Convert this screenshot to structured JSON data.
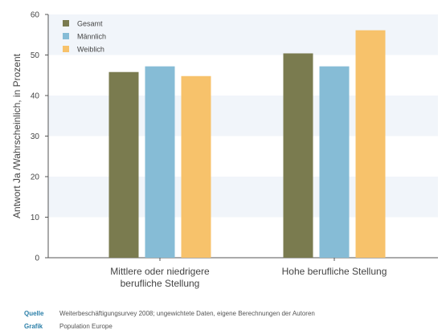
{
  "chart_data": {
    "type": "bar",
    "ylabel": "Antwort Ja /Wahrscheinlich, in Prozent",
    "ylim": [
      0,
      60
    ],
    "yticks": [
      0,
      10,
      20,
      30,
      40,
      50,
      60
    ],
    "categories": [
      "Mittlere oder niedrigere berufliche Stellung",
      "Hohe berufliche Stellung"
    ],
    "series": [
      {
        "name": "Gesamt",
        "color": "#7a7b4f",
        "values": [
          45.8,
          50.4
        ]
      },
      {
        "name": "Männlich",
        "color": "#86bcd6",
        "values": [
          47.2,
          47.2
        ]
      },
      {
        "name": "Weiblich",
        "color": "#f7c26b",
        "values": [
          44.8,
          56.1
        ]
      }
    ],
    "legend_position": "top-left",
    "grid": "alternating horizontal bands"
  },
  "footer": {
    "source_label": "Quelle",
    "source_text": "Weiterbeschäftigungsurvey 2008; ungewichtete Daten, eigene Berechnungen der Autoren",
    "graphic_label": "Grafik",
    "graphic_text": "Population Europe"
  }
}
